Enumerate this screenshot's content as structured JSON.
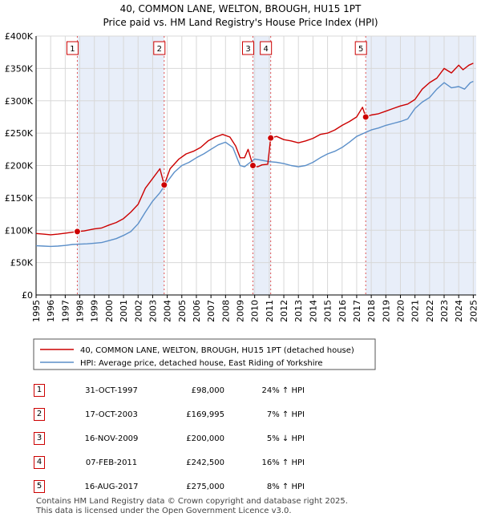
{
  "chart_data": {
    "type": "line",
    "title": "40, COMMON LANE, WELTON, BROUGH, HU15 1PT",
    "subtitle": "Price paid vs. HM Land Registry's House Price Index (HPI)",
    "xlim": [
      1995,
      2025.2
    ],
    "ylim": [
      0,
      400000
    ],
    "x_ticks": [
      "1995",
      "1996",
      "1997",
      "1998",
      "1999",
      "2000",
      "2001",
      "2002",
      "2003",
      "2004",
      "2005",
      "2006",
      "2007",
      "2008",
      "2009",
      "2010",
      "2011",
      "2012",
      "2013",
      "2014",
      "2015",
      "2016",
      "2017",
      "2018",
      "2019",
      "2020",
      "2021",
      "2022",
      "2023",
      "2024",
      "2025"
    ],
    "y_ticks": [
      {
        "value": 0,
        "label": "£0"
      },
      {
        "value": 50000,
        "label": "£50K"
      },
      {
        "value": 100000,
        "label": "£100K"
      },
      {
        "value": 150000,
        "label": "£150K"
      },
      {
        "value": 200000,
        "label": "£200K"
      },
      {
        "value": 250000,
        "label": "£250K"
      },
      {
        "value": 300000,
        "label": "£300K"
      },
      {
        "value": 350000,
        "label": "£350K"
      },
      {
        "value": 400000,
        "label": "£400K"
      }
    ],
    "grid": true,
    "legend_position": "below-chart",
    "series": [
      {
        "name": "40, COMMON LANE, WELTON, BROUGH, HU15 1PT (detached house)",
        "color": "#cc0000",
        "points": [
          [
            1995.0,
            95000
          ],
          [
            1995.5,
            94000
          ],
          [
            1996.0,
            93000
          ],
          [
            1996.5,
            94000
          ],
          [
            1997.0,
            95500
          ],
          [
            1997.5,
            97000
          ],
          [
            1997.83,
            98000
          ],
          [
            1998.3,
            99000
          ],
          [
            1999.0,
            102000
          ],
          [
            1999.5,
            103500
          ],
          [
            2000.0,
            108000
          ],
          [
            2000.5,
            112000
          ],
          [
            2001.0,
            118000
          ],
          [
            2001.5,
            128000
          ],
          [
            2002.0,
            140000
          ],
          [
            2002.5,
            165000
          ],
          [
            2003.0,
            180000
          ],
          [
            2003.5,
            195000
          ],
          [
            2003.79,
            169995
          ],
          [
            2004.2,
            195000
          ],
          [
            2004.8,
            210000
          ],
          [
            2005.3,
            218000
          ],
          [
            2005.8,
            222000
          ],
          [
            2006.3,
            228000
          ],
          [
            2006.8,
            238000
          ],
          [
            2007.3,
            244000
          ],
          [
            2007.8,
            248000
          ],
          [
            2008.3,
            244000
          ],
          [
            2008.7,
            230000
          ],
          [
            2009.0,
            212000
          ],
          [
            2009.3,
            212000
          ],
          [
            2009.55,
            225000
          ],
          [
            2009.88,
            200000
          ],
          [
            2010.2,
            198000
          ],
          [
            2010.5,
            201000
          ],
          [
            2010.9,
            202000
          ],
          [
            2011.1,
            242500
          ],
          [
            2011.5,
            245000
          ],
          [
            2012.0,
            240000
          ],
          [
            2012.5,
            238000
          ],
          [
            2013.0,
            235000
          ],
          [
            2013.5,
            238000
          ],
          [
            2014.0,
            242000
          ],
          [
            2014.5,
            248000
          ],
          [
            2015.0,
            250000
          ],
          [
            2015.5,
            255000
          ],
          [
            2016.0,
            262000
          ],
          [
            2016.5,
            268000
          ],
          [
            2017.0,
            275000
          ],
          [
            2017.4,
            290000
          ],
          [
            2017.62,
            275000
          ],
          [
            2018.0,
            278000
          ],
          [
            2018.5,
            280000
          ],
          [
            2019.0,
            284000
          ],
          [
            2019.5,
            288000
          ],
          [
            2020.0,
            292000
          ],
          [
            2020.5,
            295000
          ],
          [
            2021.0,
            302000
          ],
          [
            2021.5,
            318000
          ],
          [
            2022.0,
            328000
          ],
          [
            2022.5,
            335000
          ],
          [
            2023.0,
            350000
          ],
          [
            2023.5,
            343000
          ],
          [
            2024.0,
            355000
          ],
          [
            2024.3,
            348000
          ],
          [
            2024.7,
            355000
          ],
          [
            2025.0,
            358000
          ]
        ]
      },
      {
        "name": "HPI: Average price, detached house, East Riding of Yorkshire",
        "color": "#5b8fc9",
        "points": [
          [
            1995.0,
            76000
          ],
          [
            1995.5,
            75500
          ],
          [
            1996.0,
            75000
          ],
          [
            1996.5,
            75500
          ],
          [
            1997.0,
            76500
          ],
          [
            1997.5,
            78000
          ],
          [
            1998.0,
            78500
          ],
          [
            1998.5,
            79000
          ],
          [
            1999.0,
            80000
          ],
          [
            1999.5,
            81000
          ],
          [
            2000.0,
            84000
          ],
          [
            2000.5,
            87000
          ],
          [
            2001.0,
            92000
          ],
          [
            2001.5,
            98000
          ],
          [
            2002.0,
            110000
          ],
          [
            2002.5,
            128000
          ],
          [
            2003.0,
            145000
          ],
          [
            2003.5,
            158000
          ],
          [
            2004.0,
            175000
          ],
          [
            2004.5,
            190000
          ],
          [
            2005.0,
            200000
          ],
          [
            2005.5,
            205000
          ],
          [
            2006.0,
            212000
          ],
          [
            2006.5,
            218000
          ],
          [
            2007.0,
            225000
          ],
          [
            2007.5,
            232000
          ],
          [
            2008.0,
            236000
          ],
          [
            2008.5,
            228000
          ],
          [
            2009.0,
            200000
          ],
          [
            2009.3,
            198000
          ],
          [
            2009.7,
            205000
          ],
          [
            2010.0,
            210000
          ],
          [
            2010.5,
            208000
          ],
          [
            2011.0,
            206000
          ],
          [
            2011.5,
            205000
          ],
          [
            2012.0,
            203000
          ],
          [
            2012.5,
            200000
          ],
          [
            2013.0,
            198000
          ],
          [
            2013.5,
            200000
          ],
          [
            2014.0,
            205000
          ],
          [
            2014.5,
            212000
          ],
          [
            2015.0,
            218000
          ],
          [
            2015.5,
            222000
          ],
          [
            2016.0,
            228000
          ],
          [
            2016.5,
            236000
          ],
          [
            2017.0,
            245000
          ],
          [
            2017.5,
            250000
          ],
          [
            2018.0,
            255000
          ],
          [
            2018.5,
            258000
          ],
          [
            2019.0,
            262000
          ],
          [
            2019.5,
            265000
          ],
          [
            2020.0,
            268000
          ],
          [
            2020.5,
            272000
          ],
          [
            2021.0,
            288000
          ],
          [
            2021.5,
            298000
          ],
          [
            2022.0,
            305000
          ],
          [
            2022.5,
            318000
          ],
          [
            2023.0,
            328000
          ],
          [
            2023.5,
            320000
          ],
          [
            2024.0,
            322000
          ],
          [
            2024.4,
            318000
          ],
          [
            2024.8,
            328000
          ],
          [
            2025.0,
            330000
          ]
        ]
      }
    ],
    "sales": [
      {
        "num": "1",
        "x": 1997.83,
        "y": 98000,
        "date": "31-OCT-1997",
        "price": "£98,000",
        "hpi": "24% ↑ HPI"
      },
      {
        "num": "2",
        "x": 2003.79,
        "y": 169995,
        "date": "17-OCT-2003",
        "price": "£169,995",
        "hpi": "7% ↑ HPI"
      },
      {
        "num": "3",
        "x": 2009.88,
        "y": 200000,
        "date": "16-NOV-2009",
        "price": "£200,000",
        "hpi": "5% ↓ HPI"
      },
      {
        "num": "4",
        "x": 2011.1,
        "y": 242500,
        "date": "07-FEB-2011",
        "price": "£242,500",
        "hpi": "16% ↑ HPI"
      },
      {
        "num": "5",
        "x": 2017.62,
        "y": 275000,
        "date": "16-AUG-2017",
        "price": "£275,000",
        "hpi": "8% ↑ HPI"
      }
    ],
    "highlight_color": "#e8eef9"
  },
  "footer": {
    "line1": "Contains HM Land Registry data © Crown copyright and database right 2025.",
    "line2": "This data is licensed under the Open Government Licence v3.0."
  }
}
